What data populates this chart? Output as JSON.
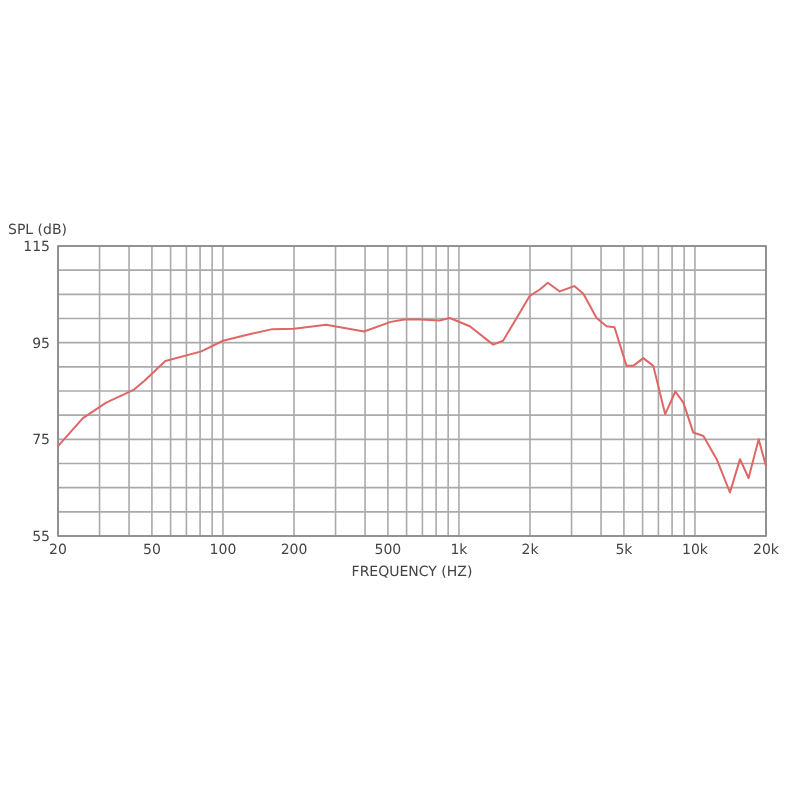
{
  "chart_data": {
    "type": "line",
    "ylabel": "SPL (dB)",
    "xlabel": "FREQUENCY (HZ)",
    "log": "x",
    "grid": true,
    "marker": "none",
    "line_style": "solid",
    "xlim": [
      20,
      20000
    ],
    "ylim": [
      55,
      115
    ],
    "xticks": [
      20,
      {
        "value": 30,
        "label": null
      },
      {
        "value": 40,
        "label": null
      },
      50,
      {
        "value": 60,
        "label": null
      },
      {
        "value": 70,
        "label": null
      },
      {
        "value": 80,
        "label": null
      },
      {
        "value": 90,
        "label": null
      },
      100,
      200,
      {
        "value": 300,
        "label": null
      },
      {
        "value": 400,
        "label": null
      },
      500,
      {
        "value": 600,
        "label": null
      },
      {
        "value": 700,
        "label": null
      },
      {
        "value": 800,
        "label": null
      },
      {
        "value": 900,
        "label": null
      },
      {
        "value": 1000,
        "label": "1k"
      },
      {
        "value": 2000,
        "label": "2k"
      },
      {
        "value": 3000,
        "label": null
      },
      {
        "value": 4000,
        "label": null
      },
      {
        "value": 5000,
        "label": "5k"
      },
      {
        "value": 6000,
        "label": null
      },
      {
        "value": 7000,
        "label": null
      },
      {
        "value": 8000,
        "label": null
      },
      {
        "value": 9000,
        "label": null
      },
      {
        "value": 10000,
        "label": "10k"
      },
      {
        "value": 20000,
        "label": "20k"
      }
    ],
    "yticks": [
      55,
      {
        "value": 60,
        "label": null
      },
      {
        "value": 65,
        "label": null
      },
      {
        "value": 70,
        "label": null
      },
      75,
      {
        "value": 80,
        "label": null
      },
      {
        "value": 85,
        "label": null
      },
      {
        "value": 90,
        "label": null
      },
      95,
      {
        "value": 100,
        "label": null
      },
      {
        "value": 105,
        "label": null
      },
      {
        "value": 110,
        "label": null
      },
      115
    ],
    "x": [
      20,
      25.5,
      32,
      42,
      46.5,
      57,
      81,
      100,
      128,
      162,
      200,
      274,
      396,
      514,
      587,
      682,
      828,
      914,
      1112,
      1396,
      1538,
      1810,
      1996,
      2200,
      2380,
      2673,
      3083,
      3366,
      3830,
      4220,
      4560,
      5130,
      5480,
      6040,
      6660,
      7480,
      8260,
      8930,
      9840,
      10860,
      12360,
      14070,
      15520,
      16870,
      18620,
      20000
    ],
    "series": [
      {
        "color": "#e06666",
        "values": [
          73.6,
          79.4,
          82.6,
          85.3,
          87.1,
          91.2,
          93.2,
          95.4,
          96.7,
          97.8,
          97.9,
          98.7,
          97.3,
          99.3,
          99.8,
          99.8,
          99.6,
          100.1,
          98.4,
          94.6,
          95.4,
          101.2,
          104.7,
          106,
          107.4,
          105.6,
          106.7,
          105.1,
          100.1,
          98.4,
          98.2,
          90.2,
          90.2,
          91.8,
          90.2,
          80.2,
          84.9,
          82.6,
          76.4,
          75.7,
          70.9,
          64,
          70.9,
          67,
          75,
          69.5
        ]
      }
    ]
  }
}
